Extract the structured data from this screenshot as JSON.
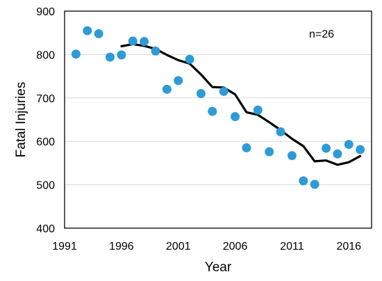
{
  "chart_data": {
    "type": "scatter",
    "xlabel": "Year",
    "ylabel": "Fatal Injuries",
    "xlim": [
      1991,
      2018
    ],
    "ylim": [
      400,
      900
    ],
    "x_ticks": [
      1991,
      1996,
      2001,
      2006,
      2011,
      2016
    ],
    "y_ticks": [
      400,
      500,
      600,
      700,
      800,
      900
    ],
    "grid": "horizontal",
    "annotation": "n=26",
    "colors": {
      "points": "#2e9bd6",
      "line": "#000000"
    },
    "series": [
      {
        "type": "scatter",
        "x": [
          1992,
          1993,
          1994,
          1995,
          1996,
          1997,
          1998,
          1999,
          2000,
          2001,
          2002,
          2003,
          2004,
          2005,
          2006,
          2007,
          2008,
          2009,
          2010,
          2011,
          2012,
          2013,
          2014,
          2015,
          2016,
          2017
        ],
        "y": [
          801,
          855,
          848,
          794,
          799,
          831,
          830,
          808,
          720,
          740,
          789,
          710,
          669,
          715,
          657,
          585,
          672,
          576,
          622,
          567,
          509,
          501,
          584,
          571,
          593,
          581
        ]
      },
      {
        "type": "line",
        "x": [
          1996,
          1997,
          1998,
          1999,
          2000,
          2001,
          2002,
          2003,
          2004,
          2005,
          2006,
          2007,
          2008,
          2009,
          2010,
          2011,
          2012,
          2013,
          2014,
          2015,
          2016,
          2017
        ],
        "y": [
          819,
          824,
          820,
          813,
          799,
          787,
          779,
          754,
          725,
          724,
          708,
          667,
          661,
          644,
          626,
          606,
          589,
          554,
          556,
          546,
          552,
          566
        ]
      }
    ]
  }
}
